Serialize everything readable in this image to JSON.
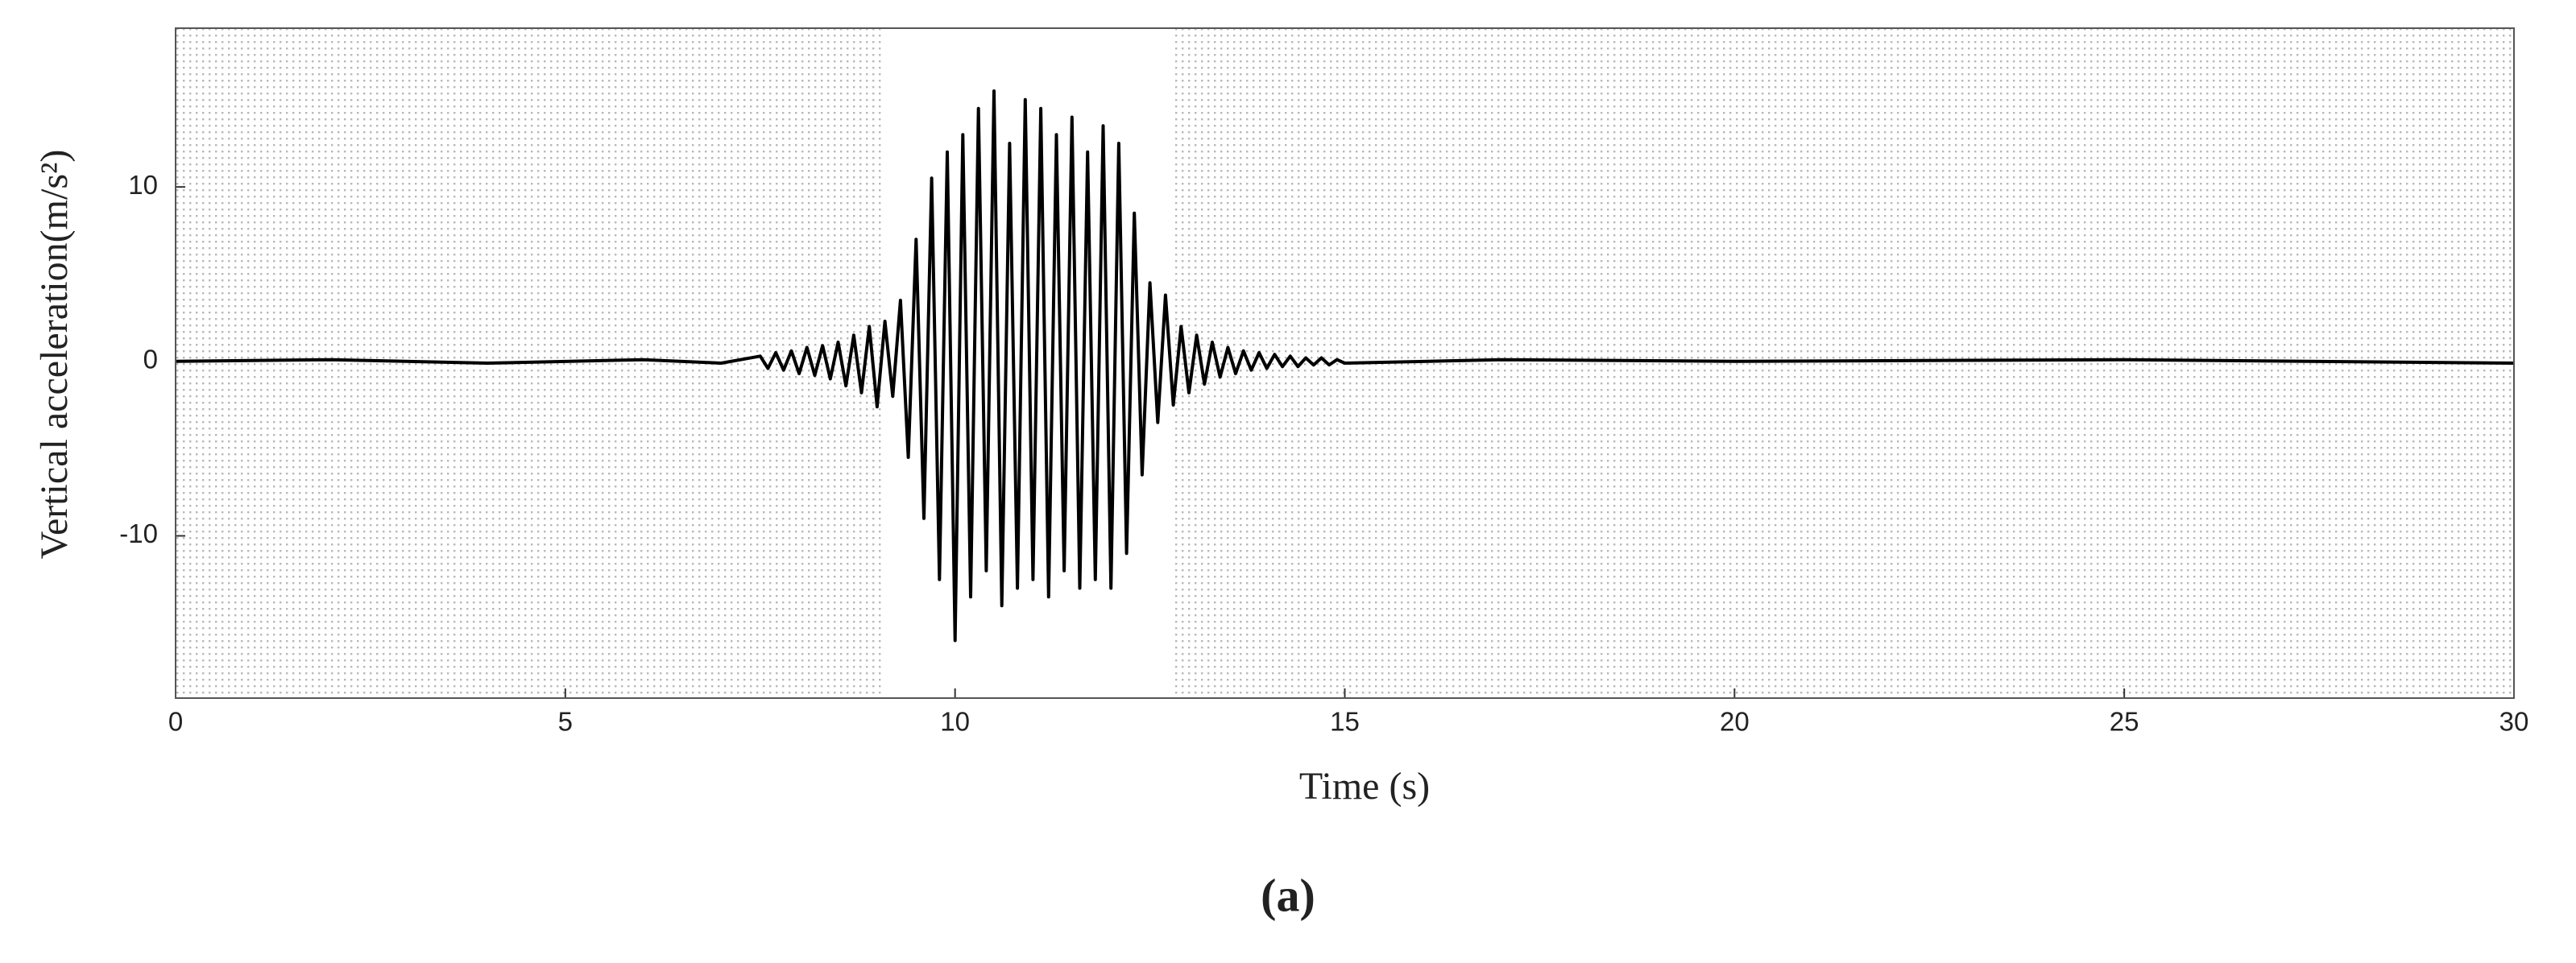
{
  "chart_data": {
    "type": "line",
    "caption": "(a)",
    "x_label": "Time (s)",
    "y_label": "Vertical acceleration(m/s²)",
    "x": [
      0,
      2,
      4,
      6,
      7,
      7.5,
      7.6,
      7.7,
      7.8,
      7.9,
      8.0,
      8.1,
      8.2,
      8.3,
      8.4,
      8.5,
      8.6,
      8.7,
      8.8,
      8.9,
      9.0,
      9.1,
      9.2,
      9.3,
      9.4,
      9.5,
      9.6,
      9.7,
      9.8,
      9.9,
      10.0,
      10.1,
      10.2,
      10.3,
      10.4,
      10.5,
      10.6,
      10.7,
      10.8,
      10.9,
      11.0,
      11.1,
      11.2,
      11.3,
      11.4,
      11.5,
      11.6,
      11.7,
      11.8,
      11.9,
      12.0,
      12.1,
      12.2,
      12.3,
      12.4,
      12.5,
      12.6,
      12.7,
      12.8,
      12.9,
      13.0,
      13.1,
      13.2,
      13.3,
      13.4,
      13.5,
      13.6,
      13.7,
      13.8,
      13.9,
      14.0,
      14.1,
      14.2,
      14.3,
      14.4,
      14.5,
      14.6,
      14.7,
      14.8,
      14.9,
      15.0,
      17,
      20,
      25,
      30
    ],
    "series": [
      {
        "color": "#000000",
        "values": [
          0,
          0.1,
          -0.1,
          0.1,
          -0.1,
          0.3,
          -0.4,
          0.5,
          -0.5,
          0.6,
          -0.7,
          0.8,
          -0.8,
          0.9,
          -1.0,
          1.1,
          -1.4,
          1.5,
          -1.8,
          2.0,
          -2.6,
          2.3,
          -2.0,
          3.5,
          -5.5,
          7.0,
          -9.0,
          10.5,
          -12.5,
          12.0,
          -16.0,
          13.0,
          -13.5,
          14.5,
          -12.0,
          15.5,
          -14.0,
          12.5,
          -13.0,
          15.0,
          -12.5,
          14.5,
          -13.5,
          13.0,
          -12.0,
          14.0,
          -13.0,
          12.0,
          -12.5,
          13.5,
          -13.0,
          12.5,
          -11.0,
          8.5,
          -6.5,
          4.5,
          -3.5,
          3.8,
          -2.5,
          2.0,
          -1.8,
          1.5,
          -1.3,
          1.1,
          -0.9,
          0.8,
          -0.7,
          0.6,
          -0.5,
          0.5,
          -0.4,
          0.4,
          -0.3,
          0.3,
          -0.3,
          0.2,
          -0.2,
          0.2,
          -0.2,
          0.1,
          -0.1,
          0.1,
          0,
          0.1,
          -0.1
        ]
      }
    ],
    "xlim": [
      0,
      30
    ],
    "xticks": [
      0,
      5,
      10,
      15,
      20,
      25,
      30
    ],
    "ylim": [
      -19.3,
      19.1
    ],
    "yticks": [
      -10,
      0,
      10
    ]
  }
}
